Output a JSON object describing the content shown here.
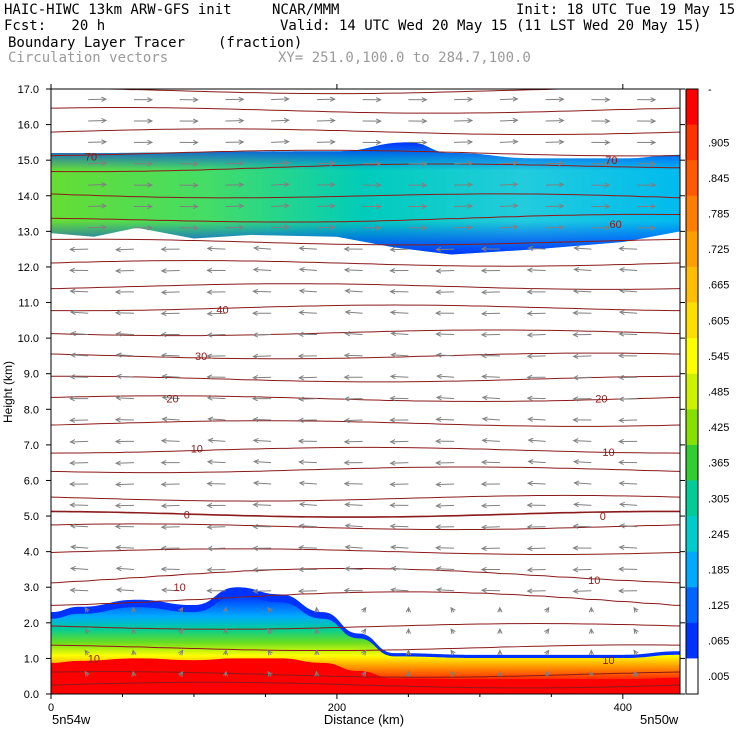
{
  "header": {
    "model": "HAIC-HIWC 13km ARW-GFS init",
    "org": "NCAR/MMM",
    "init": "Init: 18 UTC Tue 19 May 15",
    "fcst": "Fcst:   20 h",
    "valid": "Valid: 14 UTC Wed 20 May 15 (11 LST Wed 20 May 15)",
    "field1": "Boundary Layer Tracer",
    "field1_units": "(fraction)",
    "field2": "Circulation vectors",
    "xy": "XY= 251.0,100.0 to 284.7,100.0"
  },
  "chart_data": {
    "type": "heatmap",
    "xlabel": "Distance (km)",
    "ylabel": "Height (km)",
    "xlim": [
      0,
      440
    ],
    "ylim": [
      0,
      17
    ],
    "x_ticks": [
      0,
      200,
      400
    ],
    "y_ticks": [
      "0.0",
      "1.0",
      "2.0",
      "3.0",
      "4.0",
      "5.0",
      "6.0",
      "7.0",
      "8.0",
      "9.0",
      "10.0",
      "11.0",
      "12.0",
      "13.0",
      "14.0",
      "15.0",
      "16.0",
      "17.0"
    ],
    "x_endpoints": [
      "5n54w",
      "5n50w"
    ],
    "colorbar": {
      "ticks": [
        "-",
        ".905",
        ".845",
        ".785",
        ".725",
        ".665",
        ".605",
        ".545",
        ".485",
        ".425",
        ".365",
        ".305",
        ".245",
        ".185",
        ".125",
        ".065",
        ".005"
      ],
      "colors": [
        "#ff0000",
        "#ff3300",
        "#ff5a00",
        "#ff7d00",
        "#ff9f00",
        "#ffbf00",
        "#ffdf00",
        "#ffff00",
        "#ccf200",
        "#88e000",
        "#33cc33",
        "#00cc99",
        "#00cccc",
        "#00aaff",
        "#0066ff",
        "#0033ff",
        "#ffffff"
      ]
    },
    "contour_labels": [
      {
        "text": "70",
        "x": 28,
        "y": 15.1
      },
      {
        "text": "70",
        "x": 392,
        "y": 15.0
      },
      {
        "text": "60",
        "x": 395,
        "y": 13.2
      },
      {
        "text": "40",
        "x": 120,
        "y": 10.8
      },
      {
        "text": "30",
        "x": 105,
        "y": 9.5
      },
      {
        "text": "20",
        "x": 85,
        "y": 8.3
      },
      {
        "text": "20",
        "x": 385,
        "y": 8.3
      },
      {
        "text": "10",
        "x": 102,
        "y": 6.9
      },
      {
        "text": "10",
        "x": 390,
        "y": 6.8
      },
      {
        "text": "0",
        "x": 95,
        "y": 5.05
      },
      {
        "text": "0",
        "x": 386,
        "y": 5.0
      },
      {
        "text": "10",
        "x": 90,
        "y": 3.0
      },
      {
        "text": "10",
        "x": 380,
        "y": 3.2
      },
      {
        "text": "10",
        "x": 30,
        "y": 1.0
      },
      {
        "text": "10",
        "x": 390,
        "y": 0.95
      }
    ],
    "bl_tracer_top_km": [
      [
        0,
        2.3
      ],
      [
        20,
        2.45
      ],
      [
        60,
        2.65
      ],
      [
        100,
        2.5
      ],
      [
        130,
        3.0
      ],
      [
        160,
        2.8
      ],
      [
        190,
        2.3
      ],
      [
        215,
        1.7
      ],
      [
        240,
        1.15
      ],
      [
        300,
        1.1
      ],
      [
        400,
        1.1
      ],
      [
        440,
        1.2
      ]
    ],
    "upper_layer": {
      "bottom_km": [
        [
          0,
          12.95
        ],
        [
          30,
          12.85
        ],
        [
          60,
          13.1
        ],
        [
          100,
          12.8
        ],
        [
          140,
          12.9
        ],
        [
          200,
          12.85
        ],
        [
          240,
          12.55
        ],
        [
          280,
          12.35
        ],
        [
          340,
          12.5
        ],
        [
          400,
          12.7
        ],
        [
          440,
          13.0
        ]
      ],
      "top_km": [
        [
          0,
          15.2
        ],
        [
          200,
          15.25
        ],
        [
          250,
          15.5
        ],
        [
          280,
          15.2
        ],
        [
          340,
          15.05
        ],
        [
          400,
          15.05
        ],
        [
          440,
          15.15
        ]
      ]
    }
  }
}
